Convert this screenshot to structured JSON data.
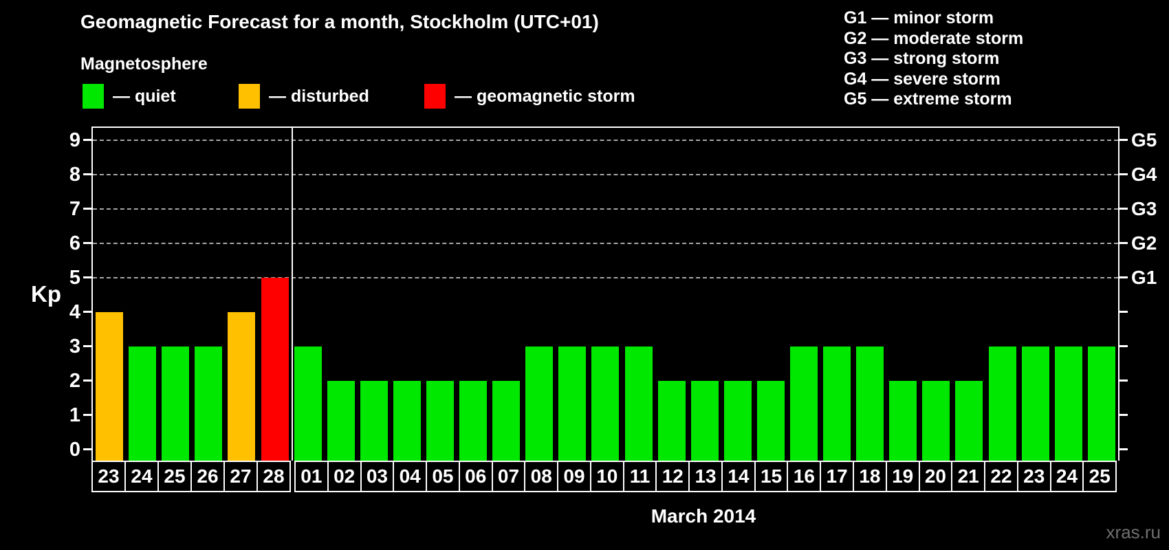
{
  "title": "Geomagnetic Forecast for a month, Stockholm (UTC+01)",
  "subtitle": "Magnetosphere",
  "kp_axis_label": "Kp",
  "month_label": "March 2014",
  "watermark": "xras.ru",
  "colors": {
    "quiet": "#00e800",
    "disturbed": "#ffc000",
    "storm": "#ff0000",
    "background": "#000000",
    "text": "#ffffff",
    "grid": "#a8a8a8",
    "watermark": "#6f6f6f"
  },
  "legend": {
    "items": [
      {
        "key": "quiet",
        "label": "— quiet"
      },
      {
        "key": "disturbed",
        "label": "— disturbed"
      },
      {
        "key": "storm",
        "label": "— geomagnetic storm"
      }
    ]
  },
  "g_scale_legend": [
    "G1 — minor storm",
    "G2 — moderate storm",
    "G3 — strong storm",
    "G4 — severe storm",
    "G5 — extreme storm"
  ],
  "chart_data": {
    "type": "bar",
    "title": "Geomagnetic Forecast for a month, Stockholm (UTC+01)",
    "xlabel": "March 2014",
    "ylabel": "Kp",
    "ylim": [
      0,
      9.4
    ],
    "yticks": [
      0,
      1,
      2,
      3,
      4,
      5,
      6,
      7,
      8,
      9
    ],
    "gridlines_at": [
      5,
      6,
      7,
      8,
      9
    ],
    "grid_style": "dashed horizontal lines at G-storm levels only",
    "legend_position": "top",
    "right_axis": [
      {
        "kp": 5,
        "label": "G1"
      },
      {
        "kp": 6,
        "label": "G2"
      },
      {
        "kp": 7,
        "label": "G3"
      },
      {
        "kp": 8,
        "label": "G4"
      },
      {
        "kp": 9,
        "label": "G5"
      }
    ],
    "month_separator_after_index": 5,
    "bars": [
      {
        "day": "23",
        "kp": 4,
        "status": "disturbed"
      },
      {
        "day": "24",
        "kp": 3,
        "status": "quiet"
      },
      {
        "day": "25",
        "kp": 3,
        "status": "quiet"
      },
      {
        "day": "26",
        "kp": 3,
        "status": "quiet"
      },
      {
        "day": "27",
        "kp": 4,
        "status": "disturbed"
      },
      {
        "day": "28",
        "kp": 5,
        "status": "storm"
      },
      {
        "day": "01",
        "kp": 3,
        "status": "quiet"
      },
      {
        "day": "02",
        "kp": 2,
        "status": "quiet"
      },
      {
        "day": "03",
        "kp": 2,
        "status": "quiet"
      },
      {
        "day": "04",
        "kp": 2,
        "status": "quiet"
      },
      {
        "day": "05",
        "kp": 2,
        "status": "quiet"
      },
      {
        "day": "06",
        "kp": 2,
        "status": "quiet"
      },
      {
        "day": "07",
        "kp": 2,
        "status": "quiet"
      },
      {
        "day": "08",
        "kp": 3,
        "status": "quiet"
      },
      {
        "day": "09",
        "kp": 3,
        "status": "quiet"
      },
      {
        "day": "10",
        "kp": 3,
        "status": "quiet"
      },
      {
        "day": "11",
        "kp": 3,
        "status": "quiet"
      },
      {
        "day": "12",
        "kp": 2,
        "status": "quiet"
      },
      {
        "day": "13",
        "kp": 2,
        "status": "quiet"
      },
      {
        "day": "14",
        "kp": 2,
        "status": "quiet"
      },
      {
        "day": "15",
        "kp": 2,
        "status": "quiet"
      },
      {
        "day": "16",
        "kp": 3,
        "status": "quiet"
      },
      {
        "day": "17",
        "kp": 3,
        "status": "quiet"
      },
      {
        "day": "18",
        "kp": 3,
        "status": "quiet"
      },
      {
        "day": "19",
        "kp": 2,
        "status": "quiet"
      },
      {
        "day": "20",
        "kp": 2,
        "status": "quiet"
      },
      {
        "day": "21",
        "kp": 2,
        "status": "quiet"
      },
      {
        "day": "22",
        "kp": 3,
        "status": "quiet"
      },
      {
        "day": "23",
        "kp": 3,
        "status": "quiet"
      },
      {
        "day": "24",
        "kp": 3,
        "status": "quiet"
      },
      {
        "day": "25",
        "kp": 3,
        "status": "quiet"
      }
    ]
  }
}
